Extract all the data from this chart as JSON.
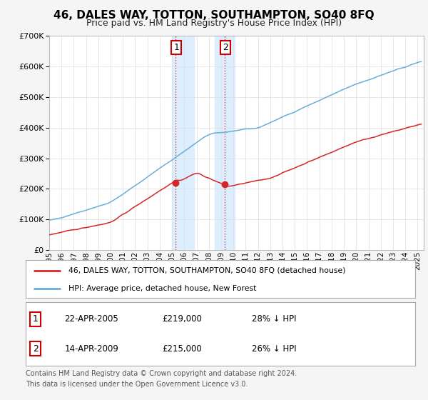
{
  "title": "46, DALES WAY, TOTTON, SOUTHAMPTON, SO40 8FQ",
  "subtitle": "Price paid vs. HM Land Registry's House Price Index (HPI)",
  "legend_line1": "46, DALES WAY, TOTTON, SOUTHAMPTON, SO40 8FQ (detached house)",
  "legend_line2": "HPI: Average price, detached house, New Forest",
  "footnote1": "Contains HM Land Registry data © Crown copyright and database right 2024.",
  "footnote2": "This data is licensed under the Open Government Licence v3.0.",
  "table": [
    {
      "num": "1",
      "date": "22-APR-2005",
      "price": "£219,000",
      "hpi": "28% ↓ HPI"
    },
    {
      "num": "2",
      "date": "14-APR-2009",
      "price": "£215,000",
      "hpi": "26% ↓ HPI"
    }
  ],
  "sale1_year": 2005.31,
  "sale1_price": 219000,
  "sale2_year": 2009.28,
  "sale2_price": 215000,
  "hpi_color": "#6baed6",
  "price_color": "#d62728",
  "shade_color": "#ddeeff",
  "background_color": "#f5f5f5",
  "plot_bg": "#ffffff",
  "ylim": [
    0,
    700000
  ],
  "yticks": [
    0,
    100000,
    200000,
    300000,
    400000,
    500000,
    600000,
    700000
  ],
  "xlim_start": 1995.0,
  "xlim_end": 2025.5
}
